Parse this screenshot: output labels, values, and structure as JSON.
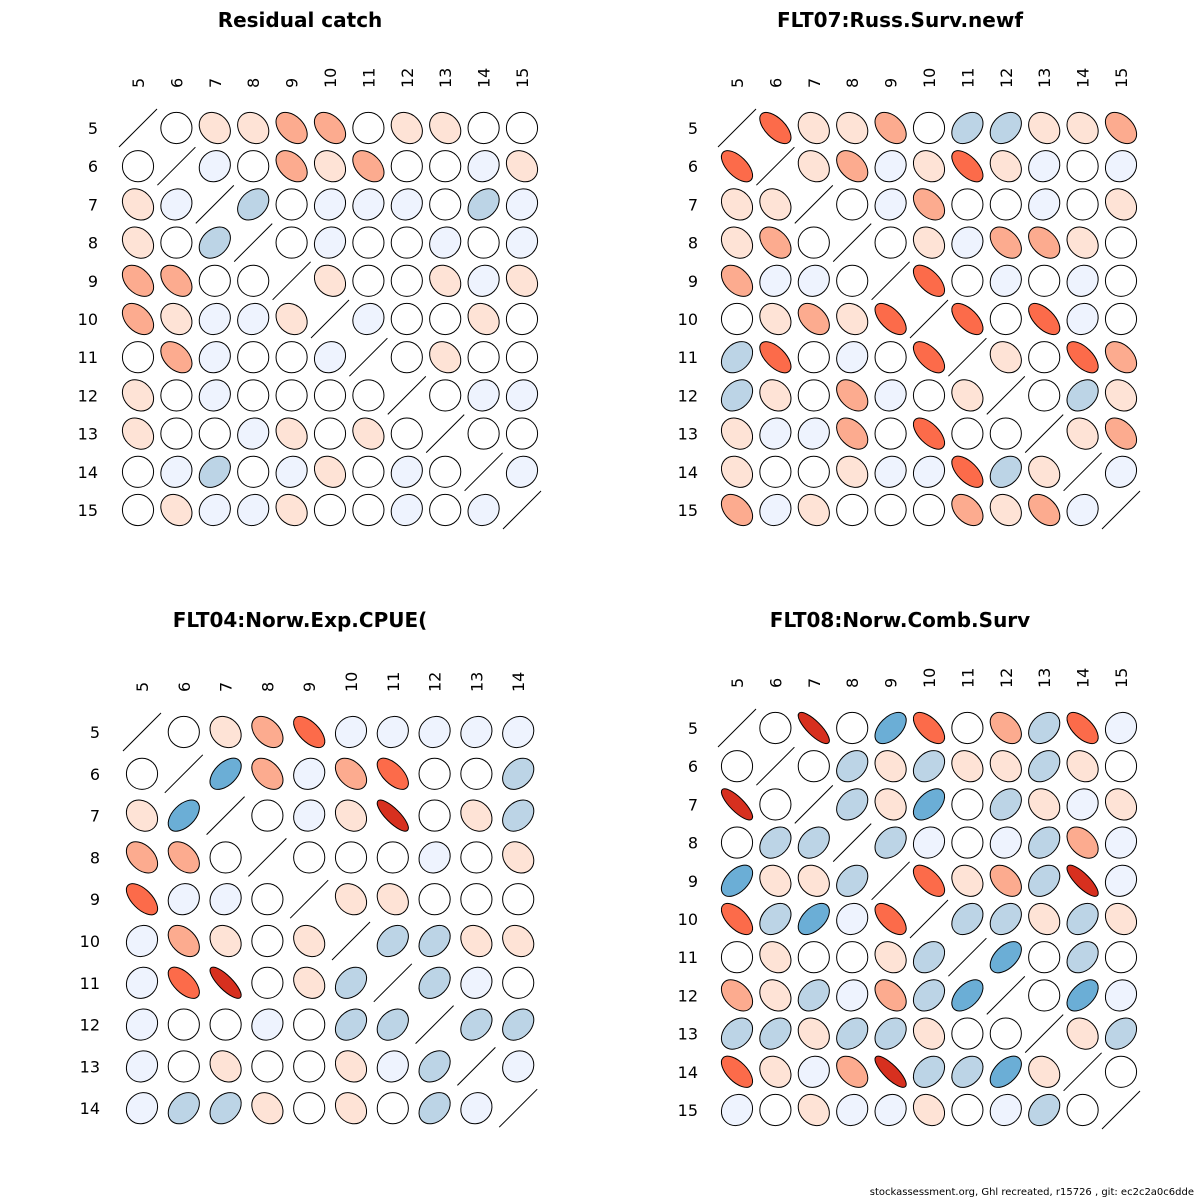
{
  "footer": "stockassessment.org, Ghl  recreated, r15726 , git: ec2c2a0c6dde",
  "chart_data": [
    {
      "type": "heatmap",
      "title": "Residual catch",
      "labels": [
        "5",
        "6",
        "7",
        "8",
        "9",
        "10",
        "11",
        "12",
        "13",
        "14",
        "15"
      ],
      "matrix": [
        [
          1,
          0,
          0.2,
          0.2,
          0.4,
          0.4,
          0,
          0.2,
          0.2,
          0,
          0
        ],
        [
          0,
          1,
          -0.1,
          0,
          0.4,
          0.2,
          0.4,
          0,
          0,
          -0.1,
          0.2
        ],
        [
          0.2,
          -0.1,
          1,
          -0.3,
          0,
          -0.1,
          -0.1,
          -0.1,
          0,
          -0.3,
          -0.1
        ],
        [
          0.2,
          0,
          -0.3,
          1,
          0,
          -0.1,
          0,
          0,
          -0.1,
          0,
          -0.1
        ],
        [
          0.4,
          0.4,
          0,
          0,
          1,
          0.2,
          0,
          0,
          0.2,
          -0.1,
          0.2
        ],
        [
          0.4,
          0.2,
          -0.1,
          -0.1,
          0.2,
          1,
          -0.1,
          0,
          0,
          0.2,
          0
        ],
        [
          0,
          0.4,
          -0.1,
          0,
          0,
          -0.1,
          1,
          0,
          0.2,
          0,
          0
        ],
        [
          0.2,
          0,
          -0.1,
          0,
          0,
          0,
          0,
          1,
          0,
          -0.1,
          -0.1
        ],
        [
          0.2,
          0,
          0,
          -0.1,
          0.2,
          0,
          0.2,
          0,
          1,
          0,
          0
        ],
        [
          0,
          -0.1,
          -0.3,
          0,
          -0.1,
          0.2,
          0,
          -0.1,
          0,
          1,
          -0.1
        ],
        [
          0,
          0.2,
          -0.1,
          -0.1,
          0.2,
          0,
          0,
          -0.1,
          0,
          -0.1,
          1
        ]
      ],
      "colors": {
        "strong_pos": "#d7301f",
        "pos": "#fc6b4a",
        "mid_pos": "#fcab8f",
        "weak_pos": "#fee3d6",
        "zero": "#ffffff",
        "weak_neg": "#eef3fe",
        "mid_neg": "#bcd4e6",
        "strong_neg": "#6baed6"
      }
    },
    {
      "type": "heatmap",
      "title": "FLT07:Russ.Surv.newf",
      "labels": [
        "5",
        "6",
        "7",
        "8",
        "9",
        "10",
        "11",
        "12",
        "13",
        "14",
        "15"
      ],
      "matrix": [
        [
          1,
          0.6,
          0.2,
          0.2,
          0.4,
          0,
          -0.3,
          -0.3,
          0.2,
          0.2,
          0.4
        ],
        [
          0.6,
          1,
          0.2,
          0.4,
          -0.1,
          0.2,
          0.6,
          0.2,
          -0.1,
          0,
          -0.1
        ],
        [
          0.2,
          0.2,
          1,
          0,
          -0.1,
          0.4,
          0,
          0,
          -0.1,
          0,
          0.2
        ],
        [
          0.2,
          0.4,
          0,
          1,
          0,
          0.2,
          -0.1,
          0.4,
          0.4,
          0.2,
          0
        ],
        [
          0.4,
          -0.1,
          -0.1,
          0,
          1,
          0.6,
          0,
          -0.1,
          0,
          -0.1,
          0
        ],
        [
          0,
          0.2,
          0.4,
          0.2,
          0.6,
          1,
          0.6,
          0,
          0.6,
          -0.1,
          0
        ],
        [
          -0.3,
          0.6,
          0,
          -0.1,
          0,
          0.6,
          1,
          0.2,
          0,
          0.6,
          0.4
        ],
        [
          -0.3,
          0.2,
          0,
          0.4,
          -0.1,
          0,
          0.2,
          1,
          0,
          -0.3,
          0.2
        ],
        [
          0.2,
          -0.1,
          -0.1,
          0.4,
          0,
          0.6,
          0,
          0,
          1,
          0.2,
          0.4
        ],
        [
          0.2,
          0,
          0,
          0.2,
          -0.1,
          -0.1,
          0.6,
          -0.3,
          0.2,
          1,
          -0.1
        ],
        [
          0.4,
          -0.1,
          0.2,
          0,
          0,
          0,
          0.4,
          0.2,
          0.4,
          -0.1,
          1
        ]
      ],
      "colors": {
        "strong_pos": "#d7301f",
        "pos": "#fc6b4a",
        "mid_pos": "#fcab8f",
        "weak_pos": "#fee3d6",
        "zero": "#ffffff",
        "weak_neg": "#eef3fe",
        "mid_neg": "#bcd4e6",
        "strong_neg": "#6baed6"
      }
    },
    {
      "type": "heatmap",
      "title": "FLT04:Norw.Exp.CPUE(",
      "labels": [
        "5",
        "6",
        "7",
        "8",
        "9",
        "10",
        "11",
        "12",
        "13",
        "14"
      ],
      "matrix": [
        [
          1,
          0,
          0.2,
          0.4,
          0.6,
          -0.1,
          -0.1,
          -0.1,
          -0.1,
          -0.1
        ],
        [
          0,
          1,
          -0.5,
          0.4,
          -0.1,
          0.4,
          0.6,
          0,
          0,
          -0.3
        ],
        [
          0.2,
          -0.5,
          1,
          0,
          -0.1,
          0.2,
          0.8,
          0,
          0.2,
          -0.3
        ],
        [
          0.4,
          0.4,
          0,
          1,
          0,
          0,
          0,
          -0.1,
          0,
          0.2
        ],
        [
          0.6,
          -0.1,
          -0.1,
          0,
          1,
          0.2,
          0.2,
          0,
          0,
          0
        ],
        [
          -0.1,
          0.4,
          0.2,
          0,
          0.2,
          1,
          -0.3,
          -0.3,
          0.2,
          0.2
        ],
        [
          -0.1,
          0.6,
          0.8,
          0,
          0.2,
          -0.3,
          1,
          -0.3,
          -0.1,
          0
        ],
        [
          -0.1,
          0,
          0,
          -0.1,
          0,
          -0.3,
          -0.3,
          1,
          -0.3,
          -0.3
        ],
        [
          -0.1,
          0,
          0.2,
          0,
          0,
          0.2,
          -0.1,
          -0.3,
          1,
          -0.1
        ],
        [
          -0.1,
          -0.3,
          -0.3,
          0.2,
          0,
          0.2,
          0,
          -0.3,
          -0.1,
          1
        ]
      ],
      "colors": {
        "strong_pos": "#d7301f",
        "pos": "#fc6b4a",
        "mid_pos": "#fcab8f",
        "weak_pos": "#fee3d6",
        "zero": "#ffffff",
        "weak_neg": "#eef3fe",
        "mid_neg": "#bcd4e6",
        "strong_neg": "#6baed6"
      }
    },
    {
      "type": "heatmap",
      "title": "FLT08:Norw.Comb.Surv",
      "labels": [
        "5",
        "6",
        "7",
        "8",
        "9",
        "10",
        "11",
        "12",
        "13",
        "14",
        "15"
      ],
      "matrix": [
        [
          1,
          0,
          0.8,
          0,
          -0.5,
          0.6,
          0,
          0.4,
          -0.3,
          0.6,
          -0.1
        ],
        [
          0,
          1,
          0,
          -0.3,
          0.2,
          -0.3,
          0.2,
          0.2,
          -0.3,
          0.2,
          0
        ],
        [
          0.8,
          0,
          1,
          -0.3,
          0.2,
          -0.5,
          0,
          -0.3,
          0.2,
          -0.1,
          0.2
        ],
        [
          0,
          -0.3,
          -0.3,
          1,
          -0.3,
          -0.1,
          0,
          -0.1,
          -0.3,
          0.4,
          -0.1
        ],
        [
          -0.5,
          0.2,
          0.2,
          -0.3,
          1,
          0.6,
          0.2,
          0.4,
          -0.3,
          0.8,
          -0.1
        ],
        [
          0.6,
          -0.3,
          -0.5,
          -0.1,
          0.6,
          1,
          -0.3,
          -0.3,
          0.2,
          -0.3,
          0.2
        ],
        [
          0,
          0.2,
          0,
          0,
          0.2,
          -0.3,
          1,
          -0.5,
          0,
          -0.3,
          0
        ],
        [
          0.4,
          0.2,
          -0.3,
          -0.1,
          0.4,
          -0.3,
          -0.5,
          1,
          0,
          -0.5,
          -0.1
        ],
        [
          -0.3,
          -0.3,
          0.2,
          -0.3,
          -0.3,
          0.2,
          0,
          0,
          1,
          0.2,
          -0.3
        ],
        [
          0.6,
          0.2,
          -0.1,
          0.4,
          0.8,
          -0.3,
          -0.3,
          -0.5,
          0.2,
          1,
          0
        ],
        [
          -0.1,
          0,
          0.2,
          -0.1,
          -0.1,
          0.2,
          0,
          -0.1,
          -0.3,
          0,
          1
        ]
      ],
      "colors": {
        "strong_pos": "#d7301f",
        "pos": "#fc6b4a",
        "mid_pos": "#fcab8f",
        "weak_pos": "#fee3d6",
        "zero": "#ffffff",
        "weak_neg": "#eef3fe",
        "mid_neg": "#bcd4e6",
        "strong_neg": "#6baed6"
      }
    }
  ]
}
